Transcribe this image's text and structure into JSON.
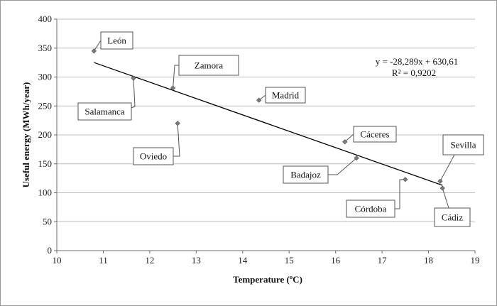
{
  "chart_data": {
    "type": "scatter",
    "xlabel": "Temperature (ºC)",
    "ylabel": "Useful energy (MWh/year)",
    "xlim": [
      10,
      19
    ],
    "ylim": [
      0,
      400
    ],
    "x_ticks": [
      10,
      11,
      12,
      13,
      14,
      15,
      16,
      17,
      18,
      19
    ],
    "y_ticks": [
      0,
      50,
      100,
      150,
      200,
      250,
      300,
      350,
      400
    ],
    "grid": "horizontal",
    "points": [
      {
        "label": "León",
        "x": 10.8,
        "y": 345
      },
      {
        "label": "Salamanca",
        "x": 11.65,
        "y": 298
      },
      {
        "label": "Zamora",
        "x": 12.5,
        "y": 281
      },
      {
        "label": "Oviedo",
        "x": 12.6,
        "y": 220
      },
      {
        "label": "Madrid",
        "x": 14.35,
        "y": 260
      },
      {
        "label": "Cáceres",
        "x": 16.2,
        "y": 188
      },
      {
        "label": "Badajoz",
        "x": 16.45,
        "y": 160
      },
      {
        "label": "Córdoba",
        "x": 17.5,
        "y": 123
      },
      {
        "label": "Sevilla",
        "x": 18.25,
        "y": 120
      },
      {
        "label": "Cádiz",
        "x": 18.3,
        "y": 108
      }
    ],
    "trendline": {
      "slope": -28.289,
      "intercept": 630.61,
      "x_range": [
        10.8,
        18.3
      ],
      "equation": "y = -28,289x + 630,61",
      "r_squared": "R² = 0,9202"
    },
    "colors": {
      "marker": "#7a7a7a",
      "line": "#000000",
      "grid": "#bdbdbd"
    }
  }
}
